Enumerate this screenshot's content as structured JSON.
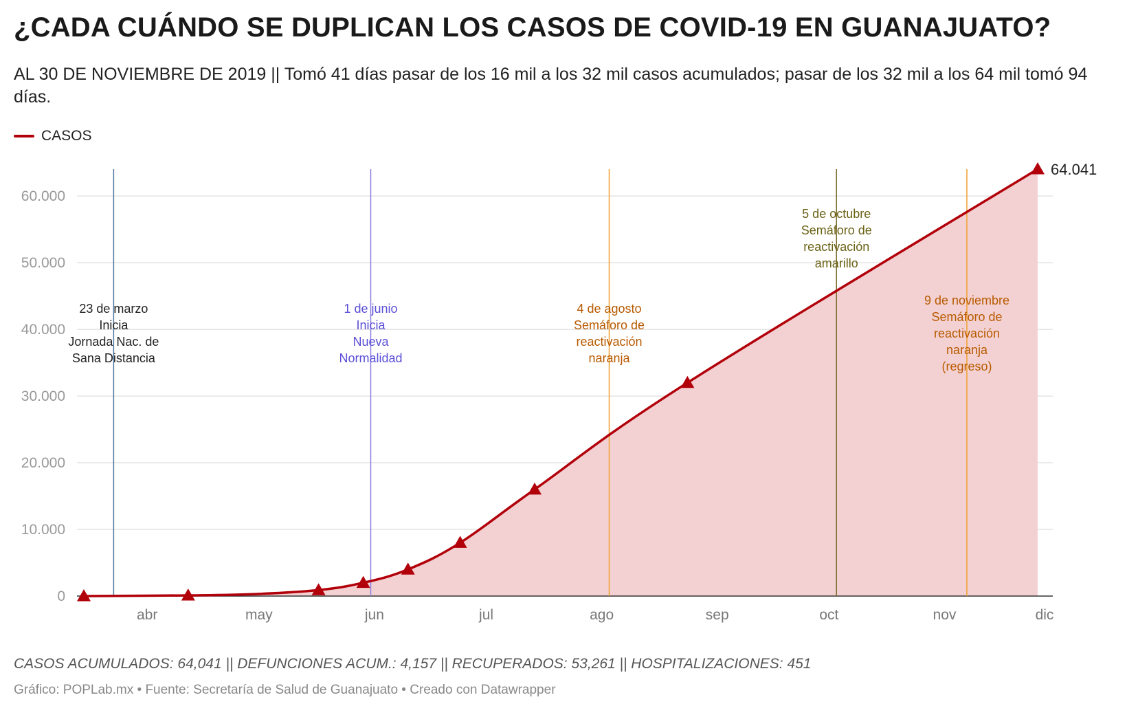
{
  "header": {
    "title": "¿CADA CUÁNDO SE DUPLICAN LOS CASOS DE COVID-19 EN GUANAJUATO?",
    "subtitle": "AL 30 DE NOVIEMBRE DE 2019 || Tomó 41 días pasar de los 16 mil a los 32 mil casos acumulados; pasar de los 32 mil a los 64 mil tomó 94 días."
  },
  "legend": {
    "label": "CASOS",
    "color": "#b2000a"
  },
  "footer": {
    "notes": "CASOS ACUMULADOS: 64,041 || DEFUNCIONES ACUM.: 4,157 || RECUPERADOS: 53,261 || HOSPITALIZACIONES: 451",
    "byline": "Gráfico: POPLab.mx • Fuente: Secretaría de Salud de Guanajuato • Creado con Datawrapper"
  },
  "chart_data": {
    "type": "area",
    "title": "¿CADA CUÁNDO SE DUPLICAN LOS CASOS DE COVID-19 EN GUANAJUATO?",
    "series": [
      {
        "name": "CASOS",
        "color": "#b2000a",
        "fill": "#f3d1d2",
        "points": [
          {
            "day": 74,
            "value": 0,
            "marker": true
          },
          {
            "day": 102,
            "value": 100,
            "marker": true
          },
          {
            "day": 120,
            "value": 300
          },
          {
            "day": 137,
            "value": 900,
            "marker": true
          },
          {
            "day": 149,
            "value": 2000,
            "marker": true
          },
          {
            "day": 161,
            "value": 4000,
            "marker": true
          },
          {
            "day": 175,
            "value": 8000,
            "marker": true
          },
          {
            "day": 195,
            "value": 16000,
            "marker": true
          },
          {
            "day": 236,
            "value": 32000,
            "marker": true
          },
          {
            "day": 330,
            "value": 64041,
            "marker": true
          }
        ]
      }
    ],
    "end_label": "64.041",
    "y_axis": {
      "min": 0,
      "max": 64041,
      "ticks": [
        0,
        10000,
        20000,
        30000,
        40000,
        50000,
        60000
      ],
      "tick_labels": [
        "0",
        "10.000",
        "20.000",
        "30.000",
        "40.000",
        "50.000",
        "60.000"
      ]
    },
    "x_axis": {
      "min_day": 72,
      "max_day": 333,
      "month_ticks": [
        {
          "day": 91,
          "label": "abr"
        },
        {
          "day": 121,
          "label": "may"
        },
        {
          "day": 152,
          "label": "jun"
        },
        {
          "day": 182,
          "label": "jul"
        },
        {
          "day": 213,
          "label": "ago"
        },
        {
          "day": 244,
          "label": "sep"
        },
        {
          "day": 274,
          "label": "oct"
        },
        {
          "day": 305,
          "label": "nov"
        },
        {
          "day": 335,
          "label": "dic"
        }
      ]
    },
    "annotations": [
      {
        "day": 82,
        "color": "#4f7aa0",
        "text_color": "#222222",
        "lines": [
          "23 de marzo",
          "Inicia",
          "Jornada Nac. de",
          "Sana Distancia"
        ],
        "text_value": 42500
      },
      {
        "day": 151,
        "color": "#8a7ee0",
        "text_color": "#5b4fd6",
        "lines": [
          "1 de junio",
          "Inicia",
          "Nueva",
          "Normalidad"
        ],
        "text_value": 42500
      },
      {
        "day": 215,
        "color": "#f0a030",
        "text_color": "#b85a00",
        "lines": [
          "4 de agosto",
          "Semáforo de",
          "reactivación",
          "naranja"
        ],
        "text_value": 42500
      },
      {
        "day": 276,
        "color": "#7a6a2a",
        "text_color": "#6b6215",
        "lines": [
          "5 de octubre",
          "Semáforo de",
          "reactivación",
          "amarillo"
        ],
        "text_value": 56700
      },
      {
        "day": 311,
        "color": "#f0a030",
        "text_color": "#b85a00",
        "lines": [
          "9 de noviembre",
          "Semáforo de",
          "reactivación",
          "naranja",
          "(regreso)"
        ],
        "text_value": 43700
      }
    ],
    "grid": true
  }
}
